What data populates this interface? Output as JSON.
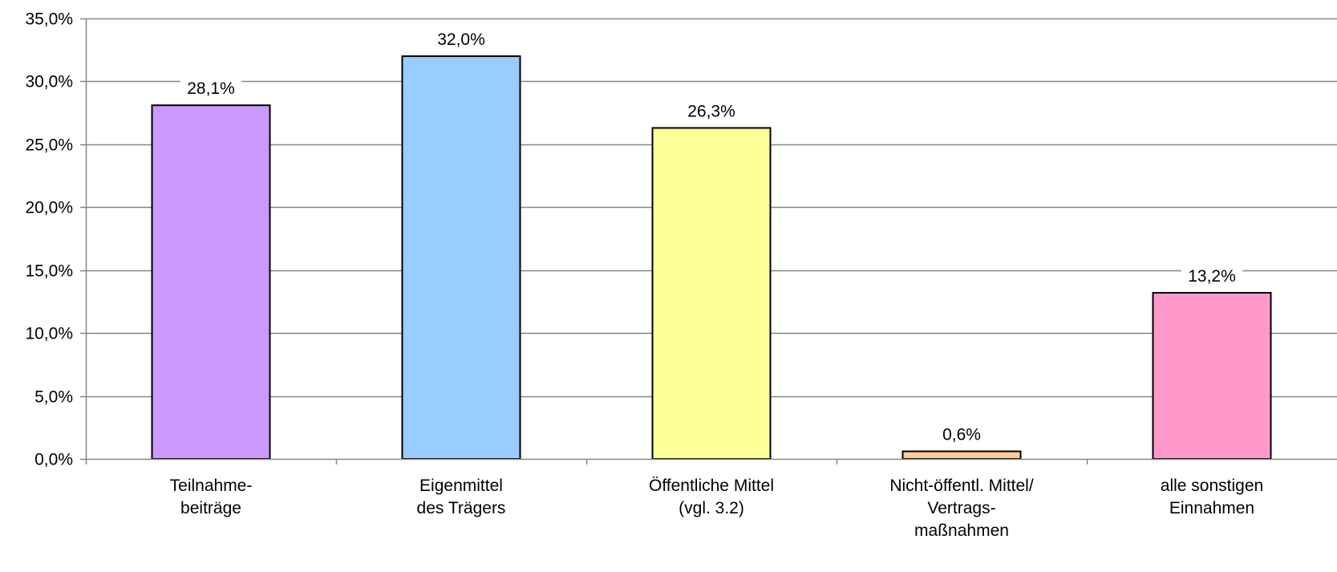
{
  "chart_data": {
    "type": "bar",
    "categories": [
      [
        "Teilnahme-",
        "beiträge"
      ],
      [
        "Eigenmittel",
        "des Trägers"
      ],
      [
        "Öffentliche Mittel",
        "(vgl. 3.2)"
      ],
      [
        "Nicht-öffentl. Mittel/",
        "Vertrags-",
        "maßnahmen"
      ],
      [
        "alle sonstigen",
        "Einnahmen"
      ]
    ],
    "values": [
      28.1,
      32.0,
      26.3,
      0.6,
      13.2
    ],
    "value_labels": [
      "28,1%",
      "32,0%",
      "26,3%",
      "0,6%",
      "13,2%"
    ],
    "colors": [
      "#cc99ff",
      "#99ccff",
      "#ffff99",
      "#ffcc99",
      "#ff99cc"
    ],
    "ylim": [
      0,
      35
    ],
    "yticks": [
      0,
      5,
      10,
      15,
      20,
      25,
      30,
      35
    ],
    "ytick_labels": [
      "0,0%",
      "5,0%",
      "10,0%",
      "15,0%",
      "20,0%",
      "25,0%",
      "30,0%",
      "35,0%"
    ],
    "grid": true,
    "legend": "none",
    "title": "",
    "xlabel": "",
    "ylabel": ""
  }
}
